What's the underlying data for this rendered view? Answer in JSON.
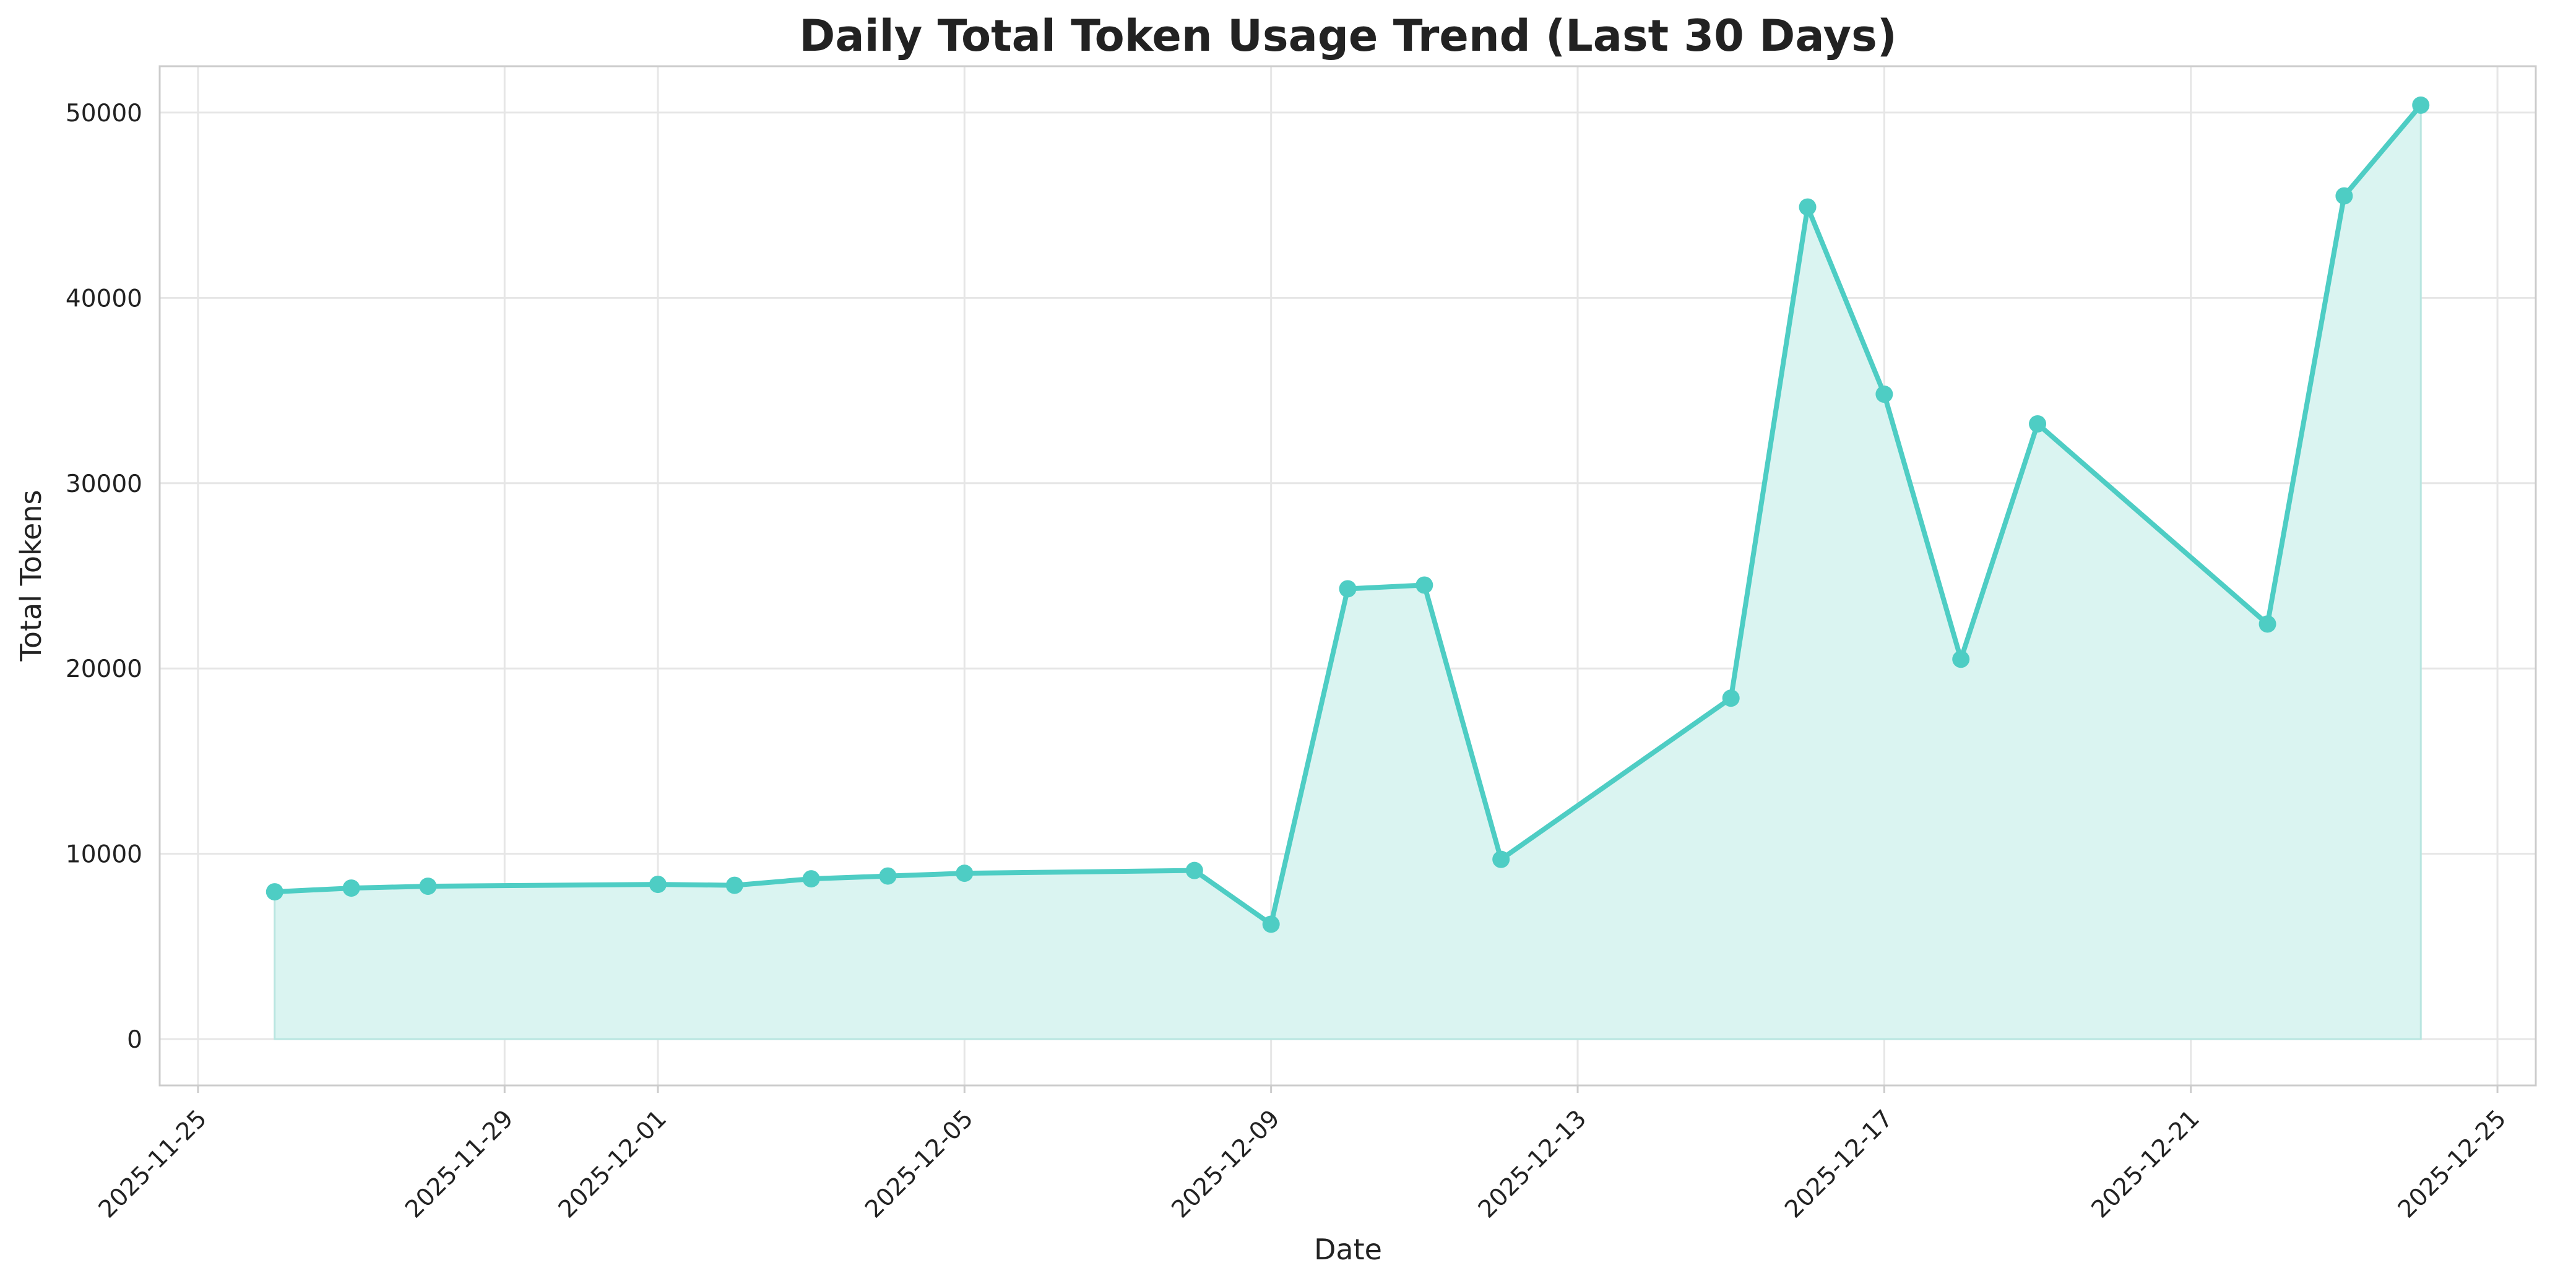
{
  "chart_data": {
    "type": "area",
    "title": "Daily Total Token Usage Trend (Last 30 Days)",
    "xlabel": "Date",
    "ylabel": "Total Tokens",
    "x_axis_type": "date",
    "xlim": [
      "2025-11-24T12:00",
      "2025-12-25T12:00"
    ],
    "ylim": [
      -2500,
      52500
    ],
    "grid": true,
    "legend": "none",
    "line_color": "#4ECDC4",
    "fill_color": "#DAF4F1",
    "x_ticks": [
      "2025-11-25",
      "2025-11-29",
      "2025-12-01",
      "2025-12-05",
      "2025-12-09",
      "2025-12-13",
      "2025-12-17",
      "2025-12-21",
      "2025-12-25"
    ],
    "y_ticks": [
      0,
      10000,
      20000,
      30000,
      40000,
      50000
    ],
    "series": [
      {
        "x": [
          "2025-11-26",
          "2025-11-27",
          "2025-11-28",
          "2025-12-01",
          "2025-12-02",
          "2025-12-03",
          "2025-12-04",
          "2025-12-05",
          "2025-12-08",
          "2025-12-09",
          "2025-12-10",
          "2025-12-11",
          "2025-12-12",
          "2025-12-15",
          "2025-12-16",
          "2025-12-17",
          "2025-12-18",
          "2025-12-19",
          "2025-12-22",
          "2025-12-23",
          "2025-12-24"
        ],
        "values": [
          7950,
          8150,
          8250,
          8350,
          8300,
          8650,
          8800,
          8950,
          9100,
          6200,
          24300,
          24500,
          9700,
          18400,
          44900,
          34800,
          20500,
          33200,
          22400,
          45500,
          50400
        ]
      }
    ]
  }
}
